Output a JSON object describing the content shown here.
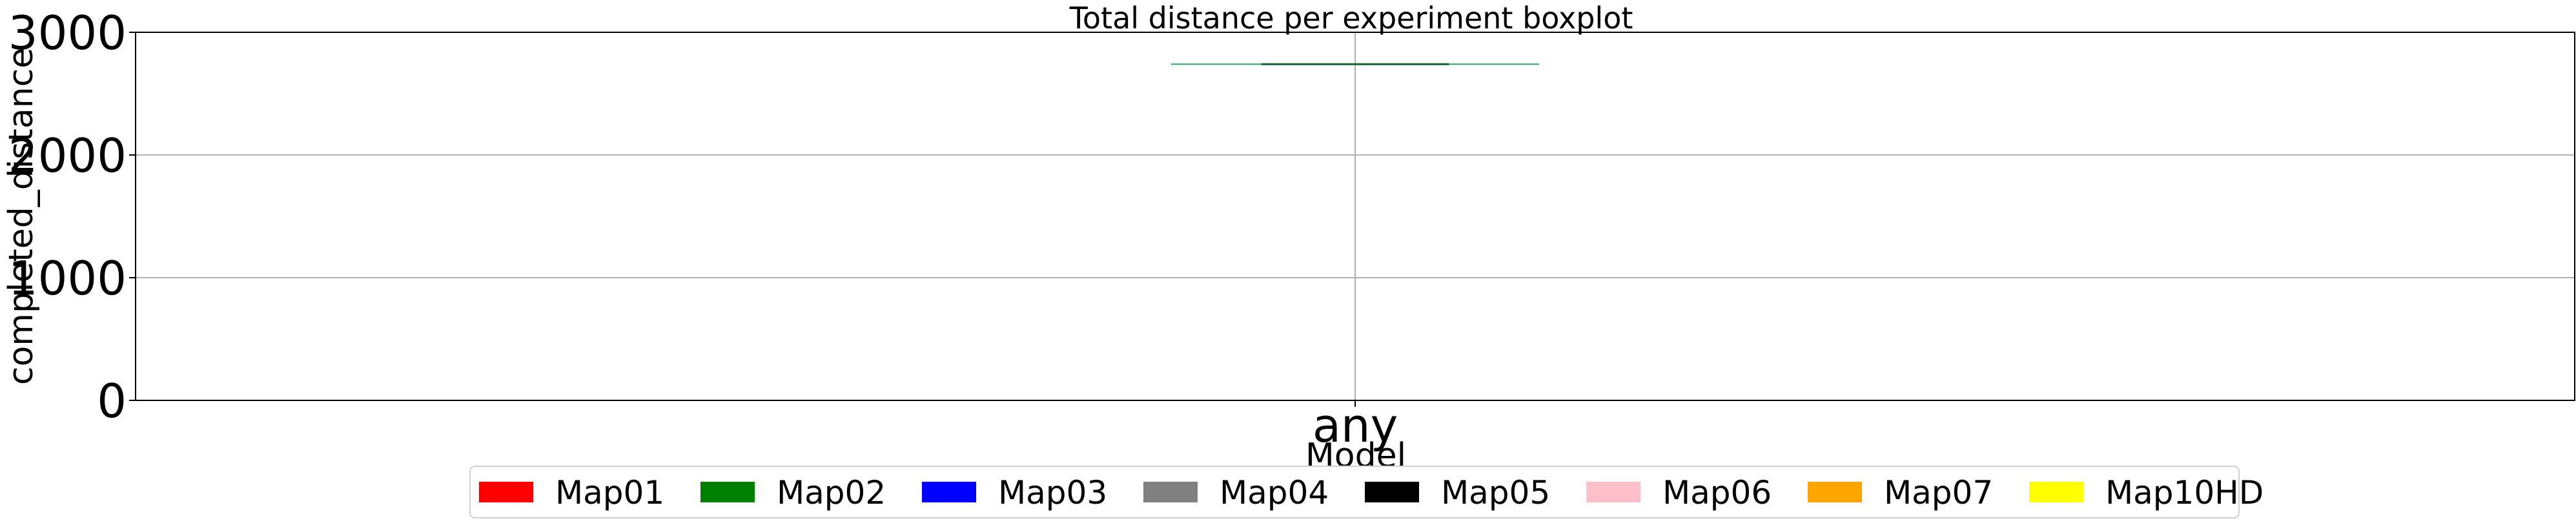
{
  "chart_data": {
    "type": "boxplot",
    "title": "Total distance per experiment boxplot",
    "xlabel": "Model",
    "ylabel": "completed_distance",
    "categories": [
      "any"
    ],
    "ylim": [
      0,
      3000
    ],
    "yticks": [
      0,
      1000,
      2000,
      3000
    ],
    "grid": true,
    "legend_placement": "bottom-center",
    "series": [
      {
        "name": "Map01",
        "color": "#ff0000",
        "values": []
      },
      {
        "name": "Map02",
        "color": "#008000",
        "values": [
          2740
        ]
      },
      {
        "name": "Map03",
        "color": "#0000ff",
        "values": []
      },
      {
        "name": "Map04",
        "color": "#808080",
        "values": []
      },
      {
        "name": "Map05",
        "color": "#000000",
        "values": []
      },
      {
        "name": "Map06",
        "color": "#ffc0cb",
        "values": []
      },
      {
        "name": "Map07",
        "color": "#ffa500",
        "values": []
      },
      {
        "name": "Map10HD",
        "color": "#ffff00",
        "values": []
      }
    ],
    "box": {
      "category": "any",
      "series": "Map02",
      "min": 2740,
      "q1": 2740,
      "median": 2740,
      "q3": 2740,
      "max": 2740
    }
  }
}
